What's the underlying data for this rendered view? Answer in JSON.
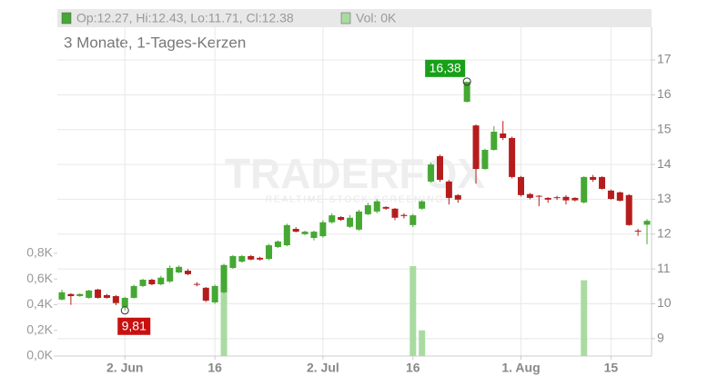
{
  "chart_data": {
    "type": "candlestick",
    "header_ohlc": "Op:12.27, Hi:12.43, Lo:11.71, Cl:12.38",
    "header_volume": "Vol: 0K",
    "title": "3 Monate, 1-Tages-Kerzen",
    "watermark": "TRADERFOX",
    "watermark_subtitle": "REALTIME STOCK SCREENING",
    "categories": [
      null,
      null,
      null,
      null,
      null,
      null,
      null,
      "2. Jun",
      null,
      null,
      null,
      null,
      null,
      null,
      null,
      null,
      null,
      "16",
      null,
      null,
      null,
      null,
      null,
      null,
      null,
      null,
      null,
      null,
      null,
      "2. Jul",
      null,
      null,
      null,
      null,
      null,
      null,
      null,
      null,
      null,
      "16",
      null,
      null,
      null,
      null,
      null,
      null,
      null,
      null,
      null,
      null,
      null,
      "1. Aug",
      null,
      null,
      null,
      null,
      null,
      null,
      null,
      null,
      null,
      "15",
      null,
      null,
      null,
      null
    ],
    "open": [
      10.12,
      10.28,
      10.22,
      10.17,
      10.41,
      10.25,
      10.22,
      9.91,
      10.17,
      10.51,
      10.69,
      10.56,
      10.64,
      10.9,
      10.95,
      10.57,
      10.46,
      10.04,
      10.33,
      11.03,
      11.21,
      11.37,
      11.32,
      11.29,
      11.63,
      11.68,
      12.15,
      12.0,
      11.89,
      11.94,
      12.34,
      12.49,
      12.21,
      12.13,
      12.57,
      12.65,
      12.78,
      12.73,
      12.55,
      12.26,
      12.73,
      13.51,
      14.24,
      13.51,
      13.12,
      15.8,
      15.12,
      13.87,
      14.42,
      14.89,
      14.76,
      13.64,
      13.15,
      13.1,
      13.04,
      13.06,
      13.07,
      13.04,
      12.91,
      13.64,
      13.64,
      13.25,
      13.2,
      13.12,
      12.1,
      12.27
    ],
    "high": [
      10.4,
      10.3,
      10.3,
      10.4,
      10.43,
      10.28,
      10.25,
      10.2,
      10.55,
      10.72,
      10.72,
      10.8,
      11.1,
      11.1,
      11.0,
      10.62,
      10.48,
      10.55,
      11.15,
      11.4,
      11.4,
      11.4,
      11.35,
      11.72,
      11.82,
      12.3,
      12.2,
      12.1,
      12.1,
      12.4,
      12.6,
      12.52,
      12.55,
      12.7,
      12.9,
      13.0,
      12.8,
      12.75,
      12.6,
      12.58,
      12.98,
      14.05,
      14.28,
      13.55,
      13.15,
      16.38,
      15.15,
      14.45,
      15.1,
      15.25,
      14.8,
      13.67,
      13.18,
      13.12,
      13.06,
      13.1,
      13.12,
      13.06,
      13.66,
      13.7,
      13.66,
      13.28,
      13.22,
      13.15,
      12.15,
      12.43
    ],
    "low": [
      10.1,
      9.97,
      10.2,
      10.15,
      10.15,
      10.15,
      9.96,
      9.81,
      10.15,
      10.48,
      10.53,
      10.53,
      10.6,
      10.88,
      10.82,
      10.5,
      10.05,
      10.0,
      10.3,
      11.0,
      11.18,
      11.25,
      11.24,
      11.25,
      11.6,
      11.65,
      12.05,
      11.97,
      11.82,
      11.9,
      12.3,
      12.38,
      12.18,
      12.1,
      12.55,
      12.6,
      12.7,
      12.4,
      12.45,
      12.2,
      12.7,
      13.48,
      13.5,
      12.85,
      12.9,
      15.78,
      13.45,
      13.85,
      14.4,
      14.7,
      13.6,
      13.08,
      13.0,
      12.8,
      12.9,
      12.98,
      12.85,
      12.94,
      12.88,
      13.5,
      13.28,
      12.99,
      12.94,
      12.24,
      11.95,
      11.71
    ],
    "close": [
      10.33,
      10.22,
      10.28,
      10.38,
      10.17,
      10.17,
      10.02,
      10.17,
      10.51,
      10.69,
      10.56,
      10.75,
      11.03,
      11.06,
      10.85,
      10.55,
      10.09,
      10.51,
      11.11,
      11.37,
      11.37,
      11.27,
      11.27,
      11.68,
      11.79,
      12.26,
      12.07,
      12.07,
      12.07,
      12.34,
      12.54,
      12.41,
      12.47,
      12.65,
      12.83,
      12.94,
      12.73,
      12.47,
      12.52,
      12.54,
      12.94,
      14.0,
      13.56,
      13.04,
      12.99,
      16.37,
      13.87,
      14.42,
      14.94,
      14.76,
      13.64,
      13.12,
      13.04,
      13.08,
      12.99,
      13.04,
      12.97,
      12.97,
      13.64,
      13.56,
      13.3,
      13.01,
      12.96,
      12.26,
      12.08,
      12.38
    ],
    "volume": [
      0,
      0,
      0,
      0,
      0,
      0,
      0,
      0,
      0,
      0,
      0,
      0,
      0,
      0,
      0,
      0,
      0,
      0,
      0.71,
      0,
      0,
      0,
      0,
      0,
      0,
      0,
      0,
      0,
      0,
      0,
      0,
      0,
      0,
      0,
      0,
      0,
      0,
      0,
      0,
      0.7,
      0.2,
      0,
      0,
      0,
      0,
      0,
      0,
      0,
      0,
      0,
      0,
      0,
      0,
      0,
      0,
      0,
      0,
      0,
      0.59,
      0,
      0,
      0,
      0,
      0,
      0,
      0
    ],
    "up_color": "#45a833",
    "down_color": "#b51d1d",
    "volume_color": "#a9dba1",
    "ylim": [
      8.5,
      17.94
    ],
    "yticks": [
      9,
      10,
      11,
      12,
      13,
      14,
      15,
      16,
      17
    ],
    "y2lim": [
      0,
      2.56
    ],
    "y2ticks": [
      {
        "value": 0,
        "label": "0,0K"
      },
      {
        "value": 0.2,
        "label": "0,2K"
      },
      {
        "value": 0.4,
        "label": "0,4K"
      },
      {
        "value": 0.6,
        "label": "0,6K"
      },
      {
        "value": 0.8,
        "label": "0,8K"
      }
    ],
    "grid": true,
    "annotations": [
      {
        "label": "16,38",
        "value": 16.38,
        "index": 45,
        "kind": "high"
      },
      {
        "label": "9,81",
        "value": 9.81,
        "index": 7,
        "kind": "low"
      }
    ]
  }
}
